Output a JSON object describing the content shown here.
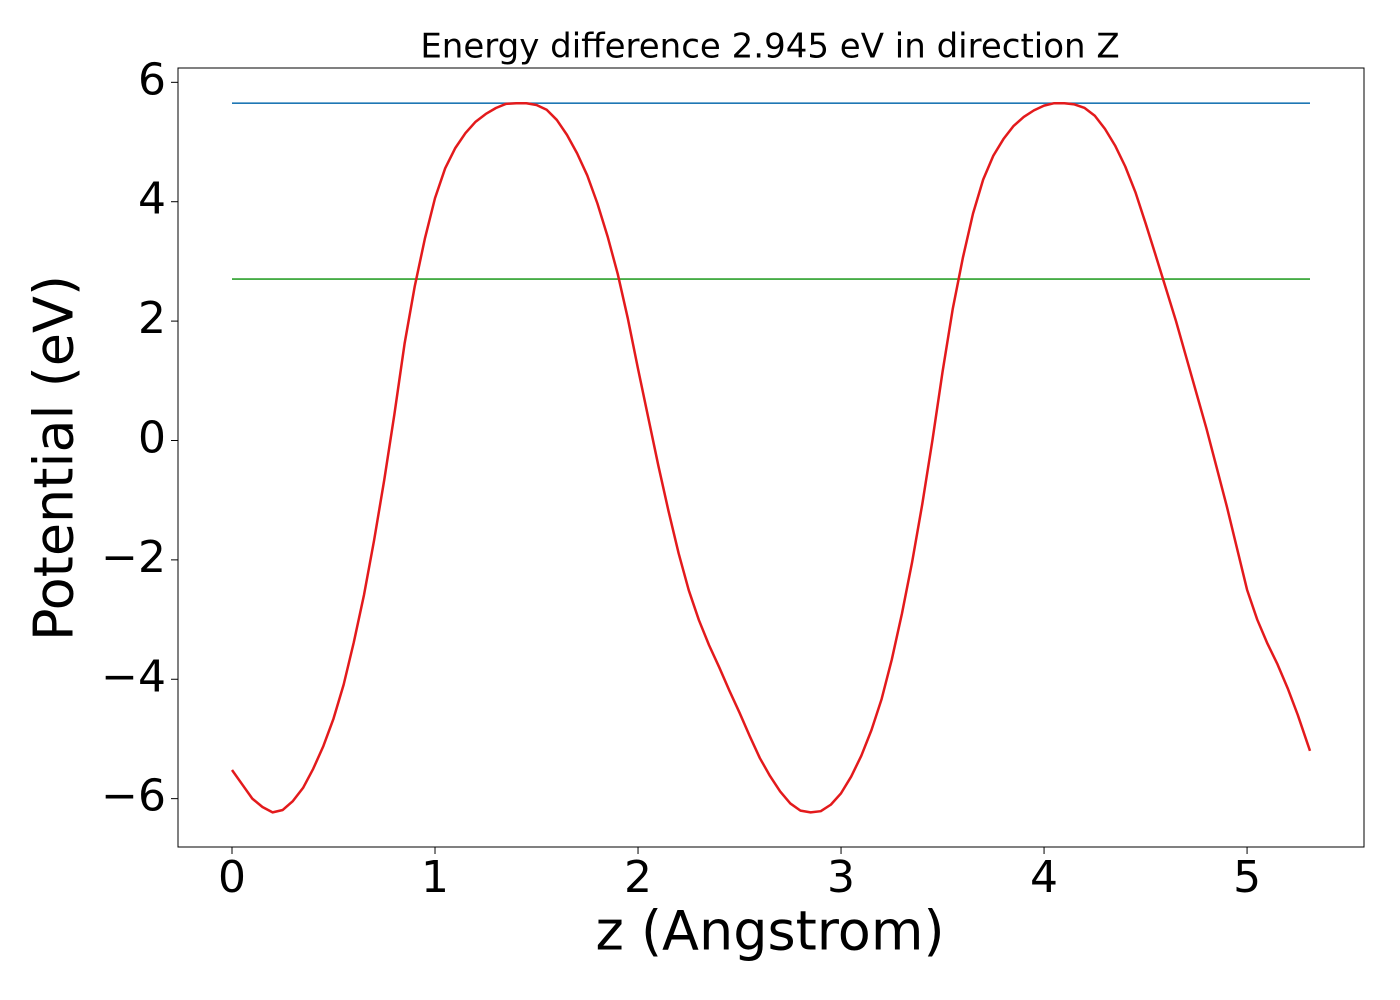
{
  "chart_data": {
    "type": "line",
    "title": "Energy difference 2.945 eV in direction Z",
    "x_label": "z (Angstrom)",
    "y_label": "Potential (eV)",
    "xlim": [
      -0.266,
      5.576
    ],
    "ylim": [
      -6.81,
      6.24
    ],
    "xticks": [
      0,
      1,
      2,
      3,
      4,
      5
    ],
    "yticks": [
      {
        "value": -6,
        "label": "−6"
      },
      {
        "value": -4,
        "label": "−4"
      },
      {
        "value": -2,
        "label": "−2"
      },
      0,
      2,
      4,
      6
    ],
    "grid": false,
    "series": [
      {
        "color": "#1f77b4",
        "x": [
          0,
          5.31
        ],
        "values": [
          5.65,
          5.65
        ]
      },
      {
        "color": "#2ca02c",
        "x": [
          0,
          5.31
        ],
        "values": [
          2.705,
          2.705
        ]
      },
      {
        "color": "#e31a1c",
        "x": [
          0,
          0.05,
          0.1,
          0.15,
          0.2,
          0.25,
          0.3,
          0.35,
          0.4,
          0.45,
          0.5,
          0.55,
          0.6,
          0.65,
          0.7,
          0.75,
          0.8,
          0.85,
          0.9,
          0.95,
          1.0,
          1.05,
          1.1,
          1.15,
          1.2,
          1.25,
          1.3,
          1.35,
          1.4,
          1.45,
          1.5,
          1.55,
          1.6,
          1.65,
          1.7,
          1.75,
          1.8,
          1.85,
          1.9,
          1.95,
          2.0,
          2.05,
          2.1,
          2.15,
          2.2,
          2.25,
          2.3,
          2.35,
          2.4,
          2.45,
          2.5,
          2.55,
          2.6,
          2.65,
          2.7,
          2.75,
          2.8,
          2.85,
          2.9,
          2.95,
          3.0,
          3.05,
          3.1,
          3.15,
          3.2,
          3.25,
          3.3,
          3.35,
          3.4,
          3.45,
          3.5,
          3.55,
          3.6,
          3.65,
          3.7,
          3.75,
          3.8,
          3.85,
          3.9,
          3.95,
          4.0,
          4.05,
          4.1,
          4.15,
          4.2,
          4.25,
          4.3,
          4.35,
          4.4,
          4.45,
          4.5,
          4.55,
          4.6,
          4.65,
          4.7,
          4.75,
          4.8,
          4.85,
          4.9,
          4.95,
          5.0,
          5.05,
          5.1,
          5.15,
          5.2,
          5.25,
          5.3,
          5.31
        ],
        "values": [
          -5.52,
          -5.76,
          -6.0,
          -6.14,
          -6.23,
          -6.19,
          -6.04,
          -5.82,
          -5.5,
          -5.12,
          -4.66,
          -4.09,
          -3.38,
          -2.59,
          -1.67,
          -0.66,
          0.44,
          1.62,
          2.58,
          3.38,
          4.06,
          4.56,
          4.9,
          5.15,
          5.34,
          5.47,
          5.57,
          5.64,
          5.65,
          5.65,
          5.62,
          5.54,
          5.37,
          5.12,
          4.81,
          4.44,
          3.97,
          3.42,
          2.79,
          2.04,
          1.2,
          0.39,
          -0.42,
          -1.18,
          -1.89,
          -2.51,
          -3.01,
          -3.43,
          -3.8,
          -4.19,
          -4.56,
          -4.95,
          -5.32,
          -5.62,
          -5.88,
          -6.08,
          -6.2,
          -6.23,
          -6.21,
          -6.1,
          -5.91,
          -5.63,
          -5.28,
          -4.85,
          -4.33,
          -3.67,
          -2.9,
          -2.04,
          -1.07,
          0.0,
          1.15,
          2.2,
          3.06,
          3.8,
          4.37,
          4.77,
          5.05,
          5.27,
          5.42,
          5.53,
          5.61,
          5.65,
          5.65,
          5.63,
          5.57,
          5.44,
          5.22,
          4.94,
          4.59,
          4.16,
          3.64,
          3.1,
          2.55,
          2.0,
          1.4,
          0.8,
          0.2,
          -0.45,
          -1.1,
          -1.8,
          -2.5,
          -3.0,
          -3.4,
          -3.75,
          -4.15,
          -4.6,
          -5.1,
          -5.2
        ]
      }
    ]
  }
}
